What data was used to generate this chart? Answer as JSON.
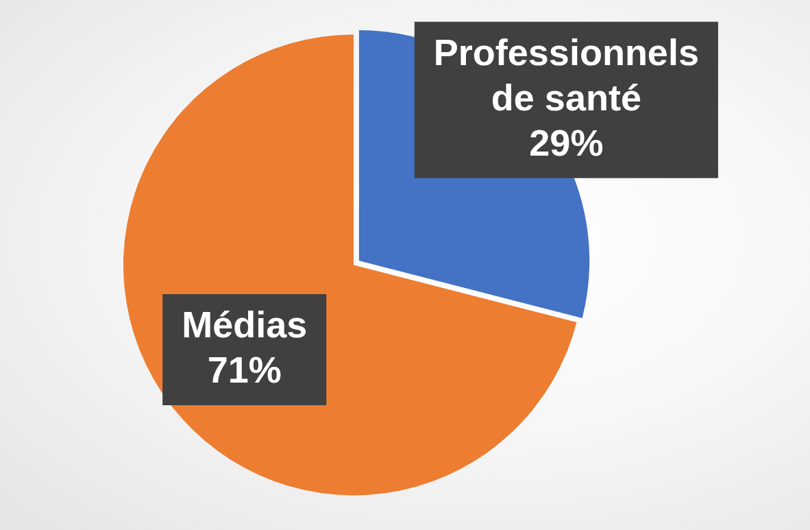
{
  "chart_data": {
    "type": "pie",
    "categories": [
      "Professionnels de santé",
      "Médias"
    ],
    "values": [
      29,
      71
    ],
    "colors": [
      "#4472c4",
      "#ed7d31"
    ],
    "value_labels": [
      "29%",
      "71%"
    ]
  }
}
